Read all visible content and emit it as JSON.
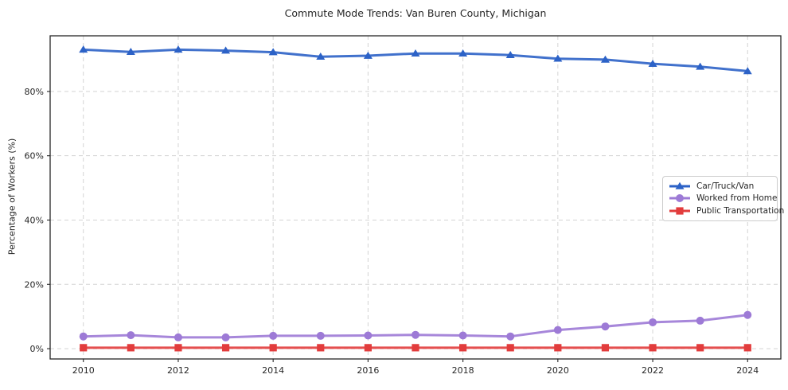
{
  "title": "Commute Mode Trends: Van Buren County, Michigan",
  "chart_data": {
    "type": "line",
    "title": "Commute Mode Trends: Van Buren County, Michigan",
    "xlabel": "",
    "ylabel": "Percentage of Workers (%)",
    "x": [
      2010,
      2011,
      2012,
      2013,
      2014,
      2015,
      2016,
      2017,
      2018,
      2019,
      2020,
      2021,
      2022,
      2023,
      2024
    ],
    "series": [
      {
        "name": "Car/Truck/Van",
        "color": "#2c62c7",
        "marker": "triangle",
        "values": [
          93.0,
          92.3,
          93.0,
          92.7,
          92.2,
          90.8,
          91.1,
          91.8,
          91.8,
          91.3,
          90.2,
          89.9,
          88.6,
          87.7,
          86.3
        ]
      },
      {
        "name": "Worked from Home",
        "color": "#9d7ad6",
        "marker": "circle",
        "values": [
          3.8,
          4.2,
          3.5,
          3.5,
          4.0,
          4.0,
          4.1,
          4.3,
          4.1,
          3.8,
          5.8,
          6.9,
          8.2,
          8.7,
          10.5
        ]
      },
      {
        "name": "Public Transportation",
        "color": "#e23c3c",
        "marker": "square",
        "values": [
          0.3,
          0.3,
          0.3,
          0.3,
          0.3,
          0.3,
          0.3,
          0.3,
          0.3,
          0.3,
          0.3,
          0.3,
          0.3,
          0.3,
          0.3
        ]
      }
    ],
    "x_ticks": [
      2010,
      2012,
      2014,
      2016,
      2018,
      2020,
      2022,
      2024
    ],
    "x_tick_labels": [
      "2010",
      "2012",
      "2014",
      "2016",
      "2018",
      "2020",
      "2022",
      "2024"
    ],
    "y_ticks": [
      0,
      20,
      40,
      60,
      80
    ],
    "y_tick_labels": [
      "0%",
      "20%",
      "40%",
      "60%",
      "80%"
    ],
    "xlim": [
      2009.3,
      2024.7
    ],
    "ylim": [
      -3.2,
      97.3
    ],
    "grid": true,
    "grid_style": "dashed",
    "grid_color": "#d3d3d3",
    "spine_color": "#262626",
    "legend_position": "center right"
  }
}
